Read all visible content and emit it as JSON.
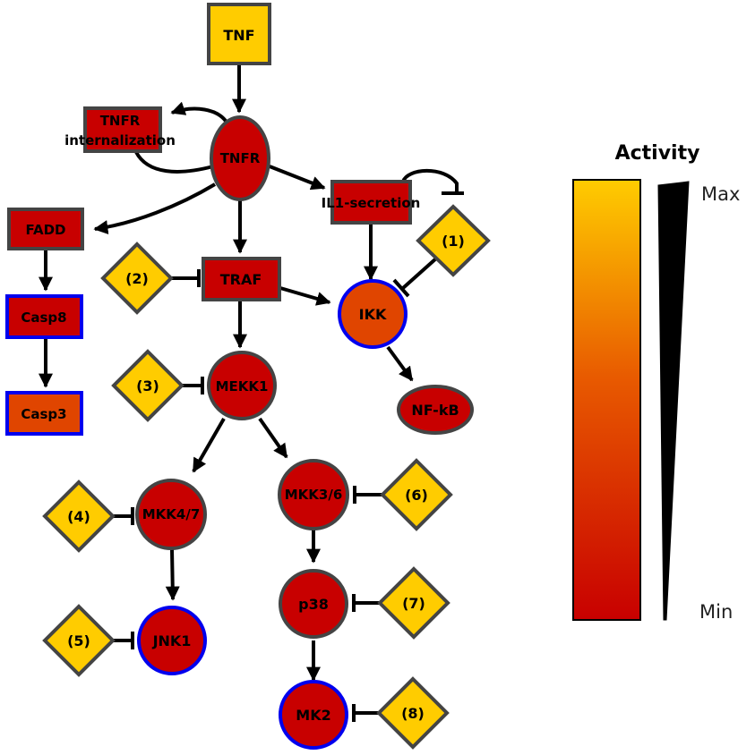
{
  "nodes": {
    "tnf": "TNF",
    "tnfr": "TNFR",
    "tnfr_internalization_line1": "TNFR",
    "tnfr_internalization_line2": "internalization",
    "il1_secretion": "IL1-secretion",
    "fadd": "FADD",
    "casp8": "Casp8",
    "casp3": "Casp3",
    "traf": "TRAF",
    "ikk": "IKK",
    "nfkb": "NF-kB",
    "mekk1": "MEKK1",
    "mkk47": "MKK4/7",
    "mkk36": "MKK3/6",
    "jnk1": "JNK1",
    "p38": "p38",
    "mk2": "MK2"
  },
  "inhibitors": [
    "(1)",
    "(2)",
    "(3)",
    "(4)",
    "(5)",
    "(6)",
    "(7)",
    "(8)"
  ],
  "legend": {
    "title": "Activity",
    "max_label": "Max",
    "min_label": "Min"
  },
  "colors": {
    "high_activity": "#ffcc00",
    "mid_activity": "#e04500",
    "low_activity": "#c80000",
    "node_border": "#444444",
    "highlight_border": "#0000ee",
    "inhibitor_fill": "#ffcc00"
  }
}
